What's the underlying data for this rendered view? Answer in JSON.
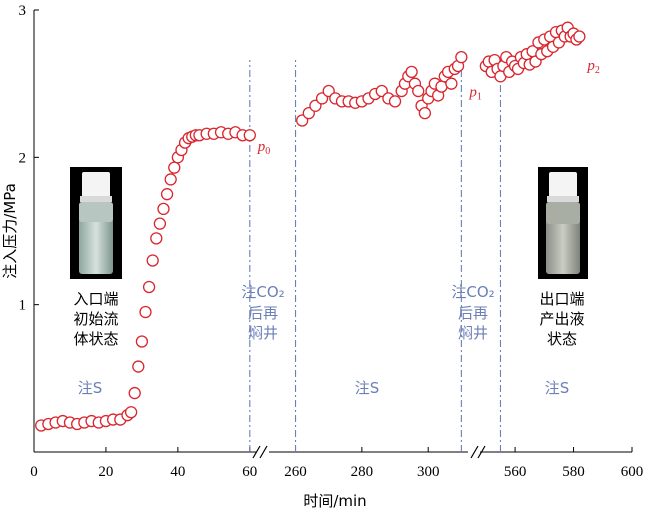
{
  "chart_data": {
    "type": "scatter",
    "ylabel": "注入压力/MPa",
    "xlabel": "时间/min",
    "ylim": [
      0,
      3
    ],
    "y_ticks": [
      "1",
      "2",
      "3"
    ],
    "x_ticks": [
      "0",
      "20",
      "40",
      "60",
      "260",
      "280",
      "300",
      "560",
      "580",
      "600"
    ],
    "segments": [
      {
        "xlim": [
          0,
          62
        ],
        "x": [
          2,
          4,
          6,
          8,
          10,
          12,
          14,
          16,
          18,
          20,
          22,
          24,
          26,
          27,
          28,
          29,
          30,
          31,
          32,
          33,
          34,
          35,
          36,
          37,
          38,
          39,
          40,
          41,
          42,
          43,
          44,
          45,
          46,
          48,
          50,
          52,
          54,
          56,
          58,
          60
        ],
        "y": [
          0.18,
          0.19,
          0.2,
          0.21,
          0.2,
          0.19,
          0.2,
          0.21,
          0.2,
          0.21,
          0.22,
          0.22,
          0.25,
          0.27,
          0.4,
          0.58,
          0.75,
          0.95,
          1.12,
          1.3,
          1.45,
          1.55,
          1.65,
          1.75,
          1.85,
          1.93,
          2.0,
          2.05,
          2.1,
          2.13,
          2.14,
          2.15,
          2.15,
          2.16,
          2.16,
          2.17,
          2.16,
          2.17,
          2.15,
          2.15
        ]
      },
      {
        "xlim": [
          252,
          312
        ],
        "x": [
          262,
          264,
          266,
          268,
          270,
          272,
          274,
          276,
          278,
          280,
          282,
          284,
          286,
          288,
          290,
          292,
          293,
          294,
          295,
          296,
          297,
          298,
          299,
          300,
          301,
          302,
          303,
          304,
          305,
          306,
          307,
          308,
          309,
          310
        ],
        "y": [
          2.25,
          2.3,
          2.35,
          2.4,
          2.45,
          2.4,
          2.38,
          2.38,
          2.37,
          2.38,
          2.4,
          2.43,
          2.45,
          2.4,
          2.38,
          2.45,
          2.5,
          2.55,
          2.58,
          2.5,
          2.45,
          2.35,
          2.3,
          2.4,
          2.45,
          2.5,
          2.42,
          2.48,
          2.55,
          2.58,
          2.5,
          2.6,
          2.62,
          2.68
        ]
      },
      {
        "xlim": [
          548,
          600
        ],
        "x": [
          550,
          551,
          552,
          553,
          554,
          555,
          556,
          557,
          558,
          559,
          560,
          561,
          562,
          563,
          564,
          565,
          566,
          567,
          568,
          569,
          570,
          571,
          572,
          573,
          574,
          575,
          576,
          577,
          578,
          579,
          580,
          581,
          582
        ],
        "y": [
          2.62,
          2.65,
          2.58,
          2.66,
          2.6,
          2.55,
          2.62,
          2.68,
          2.58,
          2.65,
          2.62,
          2.6,
          2.68,
          2.64,
          2.7,
          2.63,
          2.72,
          2.65,
          2.78,
          2.7,
          2.8,
          2.72,
          2.82,
          2.75,
          2.85,
          2.78,
          2.86,
          2.82,
          2.88,
          2.82,
          2.84,
          2.8,
          2.82
        ]
      }
    ],
    "markers": [
      {
        "label": "p",
        "sub": "0",
        "x": 60,
        "y": 2.15
      },
      {
        "label": "p",
        "sub": "1",
        "x": 310,
        "y": 2.52
      },
      {
        "label": "p",
        "sub": "2",
        "x": 582,
        "y": 2.7
      }
    ],
    "vertical_lines": [
      60,
      260,
      310,
      555
    ],
    "annotations": {
      "inlet_state": [
        "入口端",
        "初始流",
        "体状态"
      ],
      "co2_soak_1": [
        "注CO₂",
        "后再",
        "焖井"
      ],
      "co2_soak_2": [
        "注CO₂",
        "后再",
        "焖井"
      ],
      "outlet_state": [
        "出口端",
        "产出液",
        "状态"
      ],
      "inject_s_1": "注S",
      "inject_s_2": "注S",
      "inject_s_3": "注S"
    }
  }
}
